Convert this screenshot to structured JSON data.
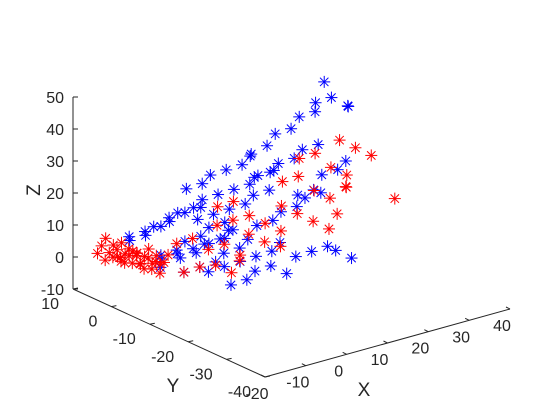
{
  "chart_data": {
    "type": "scatter",
    "dimensions": 3,
    "marker": "asterisk",
    "xlabel": "X",
    "ylabel": "Y",
    "zlabel": "Z",
    "xlim": [
      -20,
      40
    ],
    "ylim": [
      -40,
      10
    ],
    "zlim": [
      -10,
      50
    ],
    "xticks": [
      -20,
      -10,
      0,
      10,
      20,
      30,
      40
    ],
    "yticks": [
      -40,
      -30,
      -20,
      -10,
      0,
      10
    ],
    "zticks": [
      -10,
      0,
      10,
      20,
      30,
      40,
      50
    ],
    "xtick_labels": [
      "-20",
      "-10",
      "0",
      "10",
      "20",
      "30",
      "40"
    ],
    "ytick_labels": [
      "-40",
      "-30",
      "-20",
      "-10",
      "0",
      "10"
    ],
    "ztick_labels": [
      "-10",
      "0",
      "10",
      "20",
      "30",
      "40",
      "50"
    ],
    "grid": false,
    "series": [
      {
        "color": "#0000ff",
        "points": [
          [
            -8,
            8,
            2
          ],
          [
            -6,
            6,
            4
          ],
          [
            -4,
            6,
            6
          ],
          [
            -2,
            4,
            8
          ],
          [
            0,
            4,
            10
          ],
          [
            2,
            2,
            12
          ],
          [
            -6,
            2,
            0
          ],
          [
            -4,
            0,
            2
          ],
          [
            -2,
            0,
            4
          ],
          [
            0,
            -2,
            6
          ],
          [
            2,
            -2,
            8
          ],
          [
            4,
            -4,
            10
          ],
          [
            -8,
            0,
            -2
          ],
          [
            -5,
            -2,
            1
          ],
          [
            -3,
            -4,
            3
          ],
          [
            -1,
            -4,
            5
          ],
          [
            1,
            -6,
            7
          ],
          [
            3,
            -6,
            9
          ],
          [
            -4,
            4,
            -3
          ],
          [
            -2,
            2,
            -1
          ],
          [
            0,
            0,
            1
          ],
          [
            2,
            -2,
            3
          ],
          [
            4,
            -4,
            5
          ],
          [
            6,
            -4,
            7
          ],
          [
            -6,
            -4,
            -2
          ],
          [
            -4,
            -6,
            0
          ],
          [
            -2,
            -8,
            2
          ],
          [
            0,
            -8,
            4
          ],
          [
            2,
            -10,
            6
          ],
          [
            4,
            -10,
            8
          ],
          [
            0,
            -4,
            -4
          ],
          [
            2,
            -6,
            -2
          ],
          [
            4,
            -8,
            0
          ],
          [
            6,
            -10,
            2
          ],
          [
            8,
            -12,
            4
          ],
          [
            10,
            -12,
            6
          ],
          [
            3,
            2,
            8
          ],
          [
            5,
            0,
            10
          ],
          [
            7,
            -2,
            12
          ],
          [
            9,
            -4,
            14
          ],
          [
            11,
            -4,
            16
          ],
          [
            13,
            -6,
            18
          ],
          [
            6,
            4,
            12
          ],
          [
            8,
            2,
            14
          ],
          [
            10,
            0,
            16
          ],
          [
            12,
            -2,
            18
          ],
          [
            14,
            -2,
            20
          ],
          [
            16,
            -4,
            22
          ],
          [
            -10,
            6,
            5
          ],
          [
            -8,
            4,
            7
          ],
          [
            -6,
            2,
            9
          ],
          [
            -4,
            2,
            11
          ],
          [
            -2,
            0,
            13
          ],
          [
            0,
            -2,
            15
          ],
          [
            4,
            6,
            15
          ],
          [
            6,
            4,
            17
          ],
          [
            8,
            4,
            19
          ],
          [
            10,
            2,
            21
          ],
          [
            12,
            0,
            23
          ],
          [
            14,
            0,
            25
          ],
          [
            10,
            -6,
            8
          ],
          [
            12,
            -8,
            10
          ],
          [
            14,
            -8,
            12
          ],
          [
            16,
            -10,
            14
          ],
          [
            18,
            -10,
            16
          ],
          [
            20,
            -12,
            18
          ],
          [
            15,
            0,
            18
          ],
          [
            17,
            -2,
            20
          ],
          [
            19,
            -2,
            22
          ],
          [
            21,
            -4,
            24
          ],
          [
            23,
            -4,
            26
          ],
          [
            25,
            -6,
            28
          ],
          [
            18,
            4,
            22
          ],
          [
            20,
            2,
            25
          ],
          [
            22,
            2,
            28
          ],
          [
            24,
            0,
            30
          ],
          [
            26,
            0,
            33
          ],
          [
            28,
            -2,
            35
          ],
          [
            30,
            0,
            36
          ],
          [
            32,
            -2,
            38
          ],
          [
            34,
            2,
            40
          ],
          [
            36,
            -2,
            34
          ],
          [
            38,
            0,
            32
          ],
          [
            20,
            -6,
            14
          ],
          [
            22,
            -8,
            16
          ],
          [
            24,
            -8,
            20
          ],
          [
            26,
            -10,
            22
          ],
          [
            28,
            -10,
            24
          ],
          [
            -2,
            -12,
            -3
          ],
          [
            0,
            -14,
            -1
          ],
          [
            2,
            -14,
            1
          ],
          [
            4,
            -16,
            3
          ],
          [
            6,
            -18,
            1
          ],
          [
            12,
            -14,
            2
          ],
          [
            14,
            -16,
            4
          ],
          [
            16,
            -18,
            6
          ],
          [
            18,
            -18,
            4
          ],
          [
            20,
            -20,
            2
          ]
        ]
      },
      {
        "color": "#ff0000",
        "points": [
          [
            -14,
            8,
            -2
          ],
          [
            -13,
            8,
            0
          ],
          [
            -12,
            8,
            2
          ],
          [
            -14,
            6,
            0
          ],
          [
            -13,
            6,
            2
          ],
          [
            -12,
            6,
            -2
          ],
          [
            -14,
            4,
            1
          ],
          [
            -13,
            4,
            -1
          ],
          [
            -12,
            4,
            3
          ],
          [
            -11,
            6,
            0
          ],
          [
            -11,
            4,
            2
          ],
          [
            -10,
            6,
            -1
          ],
          [
            -10,
            4,
            1
          ],
          [
            -9,
            5,
            0
          ],
          [
            -13,
            2,
            0
          ],
          [
            -12,
            2,
            2
          ],
          [
            -11,
            2,
            -1
          ],
          [
            -10,
            2,
            1
          ],
          [
            -9,
            2,
            3
          ],
          [
            -13,
            0,
            1
          ],
          [
            -12,
            0,
            -1
          ],
          [
            -11,
            0,
            2
          ],
          [
            -10,
            0,
            0
          ],
          [
            -9,
            0,
            2
          ],
          [
            -8,
            0,
            -1
          ],
          [
            -12,
            -2,
            0
          ],
          [
            -11,
            -2,
            2
          ],
          [
            -10,
            -2,
            -2
          ],
          [
            -9,
            -2,
            1
          ],
          [
            -8,
            -2,
            3
          ],
          [
            -14,
            10,
            -1
          ],
          [
            -13,
            10,
            1
          ],
          [
            -12,
            10,
            3
          ],
          [
            -11,
            8,
            -2
          ],
          [
            -10,
            8,
            2
          ],
          [
            -6,
            -4,
            -2
          ],
          [
            -4,
            -6,
            0
          ],
          [
            -2,
            -8,
            1
          ],
          [
            0,
            -10,
            -1
          ],
          [
            2,
            -10,
            2
          ],
          [
            -4,
            0,
            4
          ],
          [
            -2,
            -2,
            6
          ],
          [
            0,
            -4,
            3
          ],
          [
            2,
            -6,
            5
          ],
          [
            4,
            -8,
            2
          ],
          [
            4,
            -2,
            8
          ],
          [
            6,
            -4,
            10
          ],
          [
            8,
            -6,
            6
          ],
          [
            10,
            -8,
            4
          ],
          [
            12,
            -10,
            3
          ],
          [
            6,
            0,
            12
          ],
          [
            8,
            -2,
            14
          ],
          [
            10,
            -4,
            10
          ],
          [
            12,
            -6,
            8
          ],
          [
            14,
            -8,
            6
          ],
          [
            16,
            -6,
            12
          ],
          [
            18,
            -8,
            10
          ],
          [
            20,
            -10,
            8
          ],
          [
            22,
            -12,
            6
          ],
          [
            24,
            -12,
            10
          ],
          [
            20,
            -2,
            16
          ],
          [
            22,
            -4,
            18
          ],
          [
            24,
            -6,
            14
          ],
          [
            26,
            -8,
            12
          ],
          [
            28,
            -10,
            16
          ],
          [
            26,
            0,
            20
          ],
          [
            28,
            -2,
            22
          ],
          [
            30,
            -4,
            18
          ],
          [
            32,
            -6,
            16
          ],
          [
            30,
            -8,
            14
          ],
          [
            34,
            -2,
            24
          ],
          [
            36,
            -4,
            22
          ],
          [
            38,
            -6,
            20
          ],
          [
            40,
            -10,
            8
          ]
        ]
      }
    ]
  }
}
